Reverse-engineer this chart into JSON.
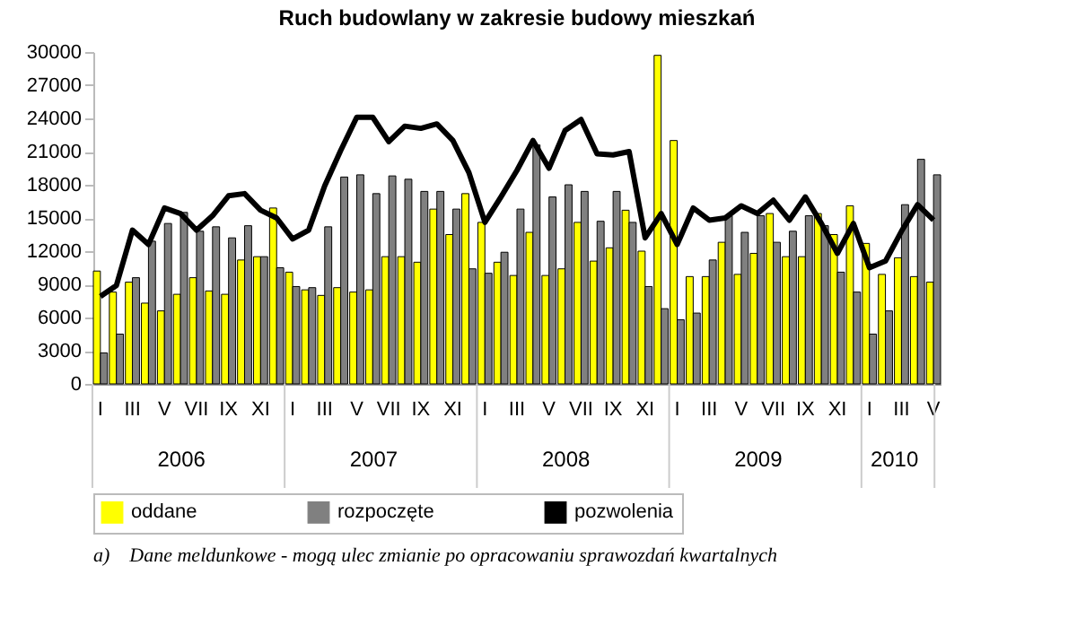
{
  "chart_data": {
    "type": "bar",
    "title": "Ruch budowlany w zakresie budowy mieszkań",
    "categories": [
      "I",
      null,
      "III",
      null,
      "V",
      null,
      "VII",
      null,
      "IX",
      null,
      "XI",
      null,
      "I",
      null,
      "III",
      null,
      "V",
      null,
      "VII",
      null,
      "IX",
      null,
      "XI",
      null,
      "I",
      null,
      "III",
      null,
      "V",
      null,
      "VII",
      null,
      "IX",
      null,
      "XI",
      null,
      "I",
      null,
      "III",
      null,
      "V",
      null,
      "VII",
      null,
      "IX",
      null,
      "XI",
      null,
      "I",
      null,
      "III",
      null,
      "V"
    ],
    "series": [
      {
        "name": "oddane",
        "color": "#ffff00",
        "values": [
          10200,
          8300,
          9200,
          7300,
          6600,
          8100,
          9600,
          8400,
          8100,
          11200,
          11500,
          15900,
          10100,
          8500,
          8000,
          8700,
          8300,
          8500,
          11500,
          11500,
          11000,
          15800,
          13500,
          17200,
          14600,
          11000,
          9800,
          13700,
          9800,
          10400,
          14600,
          11100,
          12300,
          15700,
          12000,
          29700,
          22000,
          9700,
          9700,
          12800,
          9900,
          11800,
          15400,
          11500,
          11500,
          15400,
          13500,
          16100,
          12700,
          9900,
          11400,
          9700,
          9200
        ]
      },
      {
        "name": "rozpoczęte",
        "color": "#808080",
        "values": [
          2800,
          4500,
          9600,
          12900,
          14500,
          15500,
          13800,
          14200,
          13200,
          14300,
          11500,
          10500,
          8800,
          8700,
          14200,
          18700,
          18900,
          17200,
          18800,
          18500,
          17400,
          17400,
          15800,
          10400,
          10000,
          11900,
          15800,
          21600,
          16900,
          18000,
          17400,
          14700,
          17400,
          14600,
          8800,
          6800,
          5800,
          6400,
          11200,
          15200,
          13700,
          15200,
          12800,
          13800,
          15200,
          14300,
          10100,
          8300,
          4500,
          6600,
          16200,
          20300,
          18900
        ]
      },
      {
        "name": "pozwolenia",
        "type": "line",
        "color": "#000000",
        "values": [
          7900,
          8900,
          13900,
          12600,
          15900,
          15400,
          13900,
          15200,
          17000,
          17200,
          15700,
          15000,
          13100,
          13900,
          17900,
          21100,
          24100,
          24100,
          21900,
          23300,
          23100,
          23500,
          22000,
          19100,
          14600,
          16900,
          19300,
          22000,
          19500,
          22900,
          23900,
          20800,
          20700,
          21000,
          13200,
          15400,
          12600,
          15900,
          14800,
          15000,
          16100,
          15400,
          16600,
          14800,
          16900,
          14500,
          11800,
          14500,
          10500,
          11100,
          13800,
          16200,
          14800
        ]
      }
    ],
    "ylim": [
      0,
      30000
    ],
    "yticks": [
      0,
      3000,
      6000,
      9000,
      12000,
      15000,
      18000,
      21000,
      24000,
      27000,
      30000
    ],
    "legend": "bottom",
    "annotations": [
      "2006",
      "2007",
      "2008",
      "2009",
      "2010",
      "a)    Dane meldunkowe - mogą ulec zmianie po opracowaniu sprawozdań kwartalnych"
    ]
  }
}
